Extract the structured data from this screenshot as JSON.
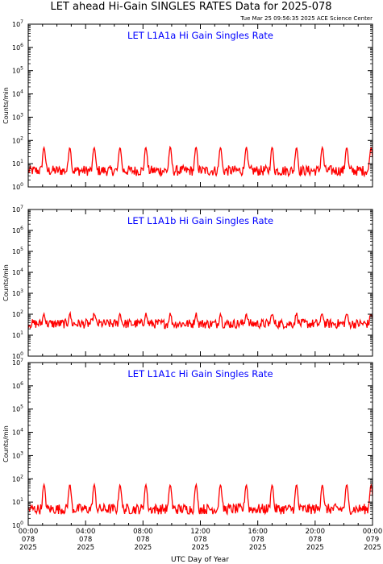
{
  "title": "LET ahead Hi-Gain SINGLES RATES Data for 2025-078",
  "timestamp": "Tue Mar 25 09:56:35 2025 ACE Science Center",
  "xlabel": "UTC Day of Year",
  "colors": {
    "trace": "#ff0000",
    "panel_label": "#0000ff",
    "axes": "#000000"
  },
  "x_ticks": [
    {
      "hh": "00:00",
      "doy": "078",
      "yr": "2025"
    },
    {
      "hh": "04:00",
      "doy": "078",
      "yr": "2025"
    },
    {
      "hh": "08:00",
      "doy": "078",
      "yr": "2025"
    },
    {
      "hh": "12:00",
      "doy": "078",
      "yr": "2025"
    },
    {
      "hh": "16:00",
      "doy": "078",
      "yr": "2025"
    },
    {
      "hh": "20:00",
      "doy": "078",
      "yr": "2025"
    },
    {
      "hh": "00:00",
      "doy": "079",
      "yr": "2025"
    }
  ],
  "y_ticks": [
    {
      "base": "10",
      "exp": "0"
    },
    {
      "base": "10",
      "exp": "1"
    },
    {
      "base": "10",
      "exp": "2"
    },
    {
      "base": "10",
      "exp": "3"
    },
    {
      "base": "10",
      "exp": "4"
    },
    {
      "base": "10",
      "exp": "5"
    },
    {
      "base": "10",
      "exp": "6"
    },
    {
      "base": "10",
      "exp": "7"
    }
  ],
  "chart_data": [
    {
      "type": "line",
      "title": "LET L1A1a Hi Gain Singles Rate",
      "ylabel": "Counts/min",
      "yscale": "log",
      "ylim": [
        1,
        10000000
      ],
      "xlim": [
        "078 00:00",
        "079 00:00"
      ],
      "x_units": "UTC hours of day 078",
      "series": [
        {
          "baseline": 5,
          "spike_peak": 45,
          "spike_hours": [
            1.1,
            2.9,
            4.6,
            6.4,
            8.2,
            9.9,
            11.7,
            13.4,
            15.2,
            17.0,
            18.7,
            20.5,
            22.2,
            23.9
          ]
        }
      ]
    },
    {
      "type": "line",
      "title": "LET L1A1b Hi Gain Singles Rate",
      "ylabel": "Counts/min",
      "yscale": "log",
      "ylim": [
        1,
        10000000
      ],
      "xlim": [
        "078 00:00",
        "079 00:00"
      ],
      "x_units": "UTC hours of day 078",
      "series": [
        {
          "baseline": 35,
          "spike_peak": 70,
          "spike_hours": [
            1.1,
            2.9,
            4.6,
            6.4,
            8.2,
            9.9,
            11.7,
            13.4,
            15.2,
            17.0,
            18.7,
            20.5,
            22.2,
            23.9
          ]
        }
      ]
    },
    {
      "type": "line",
      "title": "LET L1A1c Hi Gain Singles Rate",
      "ylabel": "Counts/min",
      "yscale": "log",
      "ylim": [
        1,
        10000000
      ],
      "xlim": [
        "078 00:00",
        "079 00:00"
      ],
      "x_units": "UTC hours of day 078",
      "series": [
        {
          "baseline": 5,
          "spike_peak": 50,
          "spike_hours": [
            1.1,
            2.9,
            4.6,
            6.4,
            8.2,
            9.9,
            11.7,
            13.4,
            15.2,
            17.0,
            18.7,
            20.5,
            22.2,
            23.9
          ]
        }
      ]
    }
  ]
}
